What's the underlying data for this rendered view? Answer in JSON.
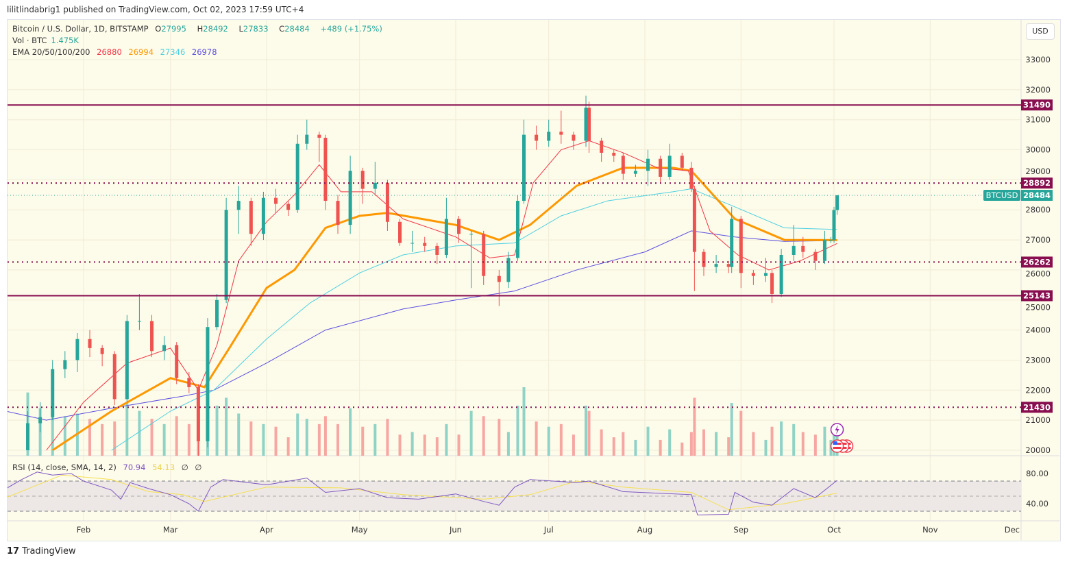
{
  "header": {
    "published": "lilitlindabrig1 published on TradingView.com, Oct 02, 2023 17:59 UTC+4"
  },
  "legend": {
    "symbol": "Bitcoin / U.S. Dollar, 1D, BITSTAMP",
    "o_label": "O",
    "o": "27995",
    "h_label": "H",
    "h": "28492",
    "l_label": "L",
    "l": "27833",
    "c_label": "C",
    "c": "28484",
    "change": "+489 (+1.75%)",
    "vol_label": "Vol · BTC",
    "vol": "1.475K",
    "ema_label": "EMA 20/50/100/200",
    "ema20": "26880",
    "ema50": "26994",
    "ema100": "27346",
    "ema200": "26978",
    "rsi_label": "RSI (14, close, SMA, 14, 2)",
    "rsi": "70.94",
    "rsi_sma": "54.13",
    "rsi_extra1": "∅",
    "rsi_extra2": "∅"
  },
  "currency": "USD",
  "footer": {
    "brand": "TradingView",
    "logo": "17"
  },
  "colors": {
    "up": "#26a69a",
    "down": "#ef5350",
    "ema20": "#f23645",
    "ema50": "#ff9800",
    "ema100": "#4dd0e1",
    "ema200": "#5b4fe0",
    "level": "#880e4f",
    "rsi": "#7e57c2",
    "rsi_sma": "#f5e050"
  },
  "chart_data": {
    "type": "candlestick",
    "year": 2023,
    "ylim": [
      20000,
      33000
    ],
    "yticks": [
      20000,
      21000,
      22000,
      23000,
      24000,
      25000,
      26000,
      27000,
      28000,
      29000,
      30000,
      31000,
      32000,
      33000
    ],
    "xticks": [
      {
        "label": "Feb",
        "date": "02-01"
      },
      {
        "label": "Mar",
        "date": "03-01"
      },
      {
        "label": "Apr",
        "date": "04-01"
      },
      {
        "label": "May",
        "date": "05-01"
      },
      {
        "label": "Jun",
        "date": "06-01"
      },
      {
        "label": "Jul",
        "date": "07-01"
      },
      {
        "label": "Aug",
        "date": "08-01"
      },
      {
        "label": "Sep",
        "date": "09-01"
      },
      {
        "label": "Oct",
        "date": "10-01"
      },
      {
        "label": "Nov",
        "date": "11-01"
      },
      {
        "label": "Dec",
        "date": "12-01"
      }
    ],
    "levels": [
      {
        "value": 31490,
        "label": "31490",
        "style": "solid"
      },
      {
        "value": 28892,
        "label": "28892",
        "style": "dotted"
      },
      {
        "value": 26262,
        "label": "26262",
        "style": "dotted"
      },
      {
        "value": 25143,
        "label": "25143",
        "style": "solid"
      },
      {
        "value": 21430,
        "label": "21430",
        "style": "dotted"
      }
    ],
    "last_price": {
      "symbol": "BTCUSD",
      "value": 28484,
      "label": "28484"
    },
    "candles": [
      [
        "01-14",
        20000,
        21300,
        20000,
        20900,
        2.4
      ],
      [
        "01-18",
        20900,
        21600,
        20600,
        21100,
        1.8
      ],
      [
        "01-22",
        21100,
        23000,
        21000,
        22700,
        2.1
      ],
      [
        "01-26",
        22700,
        23300,
        22400,
        23000,
        1.5
      ],
      [
        "01-30",
        23000,
        23900,
        22600,
        23700,
        1.6
      ],
      [
        "02-03",
        23700,
        24000,
        23100,
        23400,
        1.4
      ],
      [
        "02-07",
        23400,
        23500,
        22800,
        23200,
        1.2
      ],
      [
        "02-11",
        23200,
        23300,
        21500,
        21700,
        1.3
      ],
      [
        "02-15",
        21700,
        24500,
        21600,
        24300,
        2.0
      ],
      [
        "02-19",
        24300,
        25200,
        24000,
        24300,
        1.7
      ],
      [
        "02-23",
        24300,
        24500,
        23100,
        23300,
        1.4
      ],
      [
        "02-27",
        23300,
        23800,
        23000,
        23500,
        1.2
      ],
      [
        "03-03",
        23500,
        23600,
        22200,
        22400,
        1.5
      ],
      [
        "03-07",
        22400,
        22600,
        21900,
        22100,
        1.2
      ],
      [
        "03-10",
        22100,
        22200,
        19800,
        20300,
        2.3
      ],
      [
        "03-13",
        20300,
        24400,
        20100,
        24100,
        2.6
      ],
      [
        "03-16",
        24100,
        25200,
        24000,
        25000,
        1.9
      ],
      [
        "03-19",
        25000,
        28400,
        24900,
        28000,
        2.2
      ],
      [
        "03-23",
        28000,
        28800,
        27200,
        28300,
        1.6
      ],
      [
        "03-27",
        28300,
        28400,
        26800,
        27200,
        1.3
      ],
      [
        "03-31",
        27200,
        28600,
        27000,
        28400,
        1.2
      ],
      [
        "04-04",
        28400,
        28700,
        27900,
        28200,
        1.1
      ],
      [
        "04-08",
        28200,
        28300,
        27800,
        28000,
        0.7
      ],
      [
        "04-11",
        28000,
        30500,
        27900,
        30200,
        1.6
      ],
      [
        "04-14",
        30200,
        31000,
        30000,
        30500,
        1.4
      ],
      [
        "04-18",
        30500,
        30600,
        29600,
        30400,
        1.2
      ],
      [
        "04-20",
        30400,
        30500,
        28000,
        28300,
        1.5
      ],
      [
        "04-24",
        28300,
        28500,
        27200,
        27500,
        1.2
      ],
      [
        "04-28",
        27500,
        29800,
        27200,
        29300,
        1.8
      ],
      [
        "05-02",
        29300,
        29400,
        28200,
        28700,
        1.1
      ],
      [
        "05-06",
        28700,
        29600,
        28500,
        28900,
        1.2
      ],
      [
        "05-10",
        28900,
        29000,
        27300,
        27600,
        1.4
      ],
      [
        "05-14",
        27600,
        27700,
        26800,
        26900,
        0.8
      ],
      [
        "05-18",
        26900,
        27300,
        26600,
        26900,
        0.9
      ],
      [
        "05-22",
        26900,
        27100,
        26600,
        26800,
        0.8
      ],
      [
        "05-26",
        26800,
        26900,
        26200,
        26500,
        0.7
      ],
      [
        "05-29",
        26500,
        28400,
        26400,
        27700,
        1.2
      ],
      [
        "06-02",
        27700,
        27800,
        26900,
        27200,
        0.8
      ],
      [
        "06-06",
        27200,
        27300,
        25400,
        27200,
        1.7
      ],
      [
        "06-10",
        27200,
        27300,
        25500,
        25800,
        1.5
      ],
      [
        "06-15",
        25800,
        26000,
        24800,
        25600,
        1.4
      ],
      [
        "06-18",
        25600,
        26600,
        25400,
        26400,
        0.9
      ],
      [
        "06-21",
        26400,
        28500,
        26300,
        28300,
        1.9
      ],
      [
        "06-23",
        28300,
        31000,
        28200,
        30500,
        2.6
      ],
      [
        "06-27",
        30500,
        30800,
        30000,
        30300,
        1.3
      ],
      [
        "07-01",
        30300,
        31000,
        30100,
        30600,
        1.1
      ],
      [
        "07-05",
        30600,
        31300,
        30200,
        30500,
        1.2
      ],
      [
        "07-09",
        30500,
        30600,
        30000,
        30300,
        0.8
      ],
      [
        "07-13",
        30300,
        31800,
        30100,
        31400,
        1.9
      ],
      [
        "07-14",
        31400,
        31600,
        29900,
        30300,
        1.7
      ],
      [
        "07-18",
        30300,
        30400,
        29600,
        29900,
        1.0
      ],
      [
        "07-22",
        29900,
        30000,
        29600,
        29800,
        0.7
      ],
      [
        "07-25",
        29800,
        29900,
        29000,
        29200,
        0.9
      ],
      [
        "07-29",
        29200,
        29500,
        29100,
        29300,
        0.6
      ],
      [
        "08-02",
        29300,
        30000,
        28800,
        29700,
        1.1
      ],
      [
        "08-06",
        29700,
        29800,
        28900,
        29100,
        0.6
      ],
      [
        "08-09",
        29100,
        30200,
        29000,
        29800,
        1.0
      ],
      [
        "08-13",
        29800,
        29900,
        29300,
        29400,
        0.5
      ],
      [
        "08-16",
        29400,
        29600,
        28600,
        28700,
        0.9
      ],
      [
        "08-17",
        28700,
        28800,
        25300,
        26600,
        2.2
      ],
      [
        "08-20",
        26600,
        26700,
        25800,
        26100,
        1.0
      ],
      [
        "08-24",
        26100,
        26500,
        25900,
        26200,
        0.9
      ],
      [
        "08-28",
        26200,
        26300,
        25900,
        26100,
        0.7
      ],
      [
        "08-29",
        26100,
        28100,
        25900,
        27700,
        2.0
      ],
      [
        "09-01",
        27700,
        27800,
        25400,
        25900,
        1.7
      ],
      [
        "09-05",
        25900,
        26000,
        25500,
        25800,
        0.9
      ],
      [
        "09-09",
        25800,
        26400,
        25600,
        25900,
        0.6
      ],
      [
        "09-11",
        25900,
        26000,
        24900,
        25200,
        1.1
      ],
      [
        "09-14",
        25200,
        26700,
        25100,
        26500,
        1.3
      ],
      [
        "09-18",
        26500,
        27500,
        26300,
        26800,
        1.2
      ],
      [
        "09-21",
        26800,
        27100,
        26400,
        26600,
        0.9
      ],
      [
        "09-25",
        26600,
        26700,
        26000,
        26300,
        0.8
      ],
      [
        "09-28",
        26300,
        27300,
        26200,
        27000,
        1.1
      ],
      [
        "09-30",
        27000,
        27100,
        26900,
        27000,
        0.6
      ],
      [
        "10-01",
        27000,
        28100,
        26900,
        27995,
        1.2
      ],
      [
        "10-02",
        27995,
        28492,
        27833,
        28484,
        0.9
      ]
    ],
    "ema20": [
      [
        "01-20",
        20000
      ],
      [
        "02-01",
        21600
      ],
      [
        "02-15",
        22900
      ],
      [
        "03-01",
        23400
      ],
      [
        "03-10",
        22000
      ],
      [
        "03-16",
        23500
      ],
      [
        "03-23",
        26300
      ],
      [
        "04-01",
        27600
      ],
      [
        "04-10",
        28500
      ],
      [
        "04-18",
        29500
      ],
      [
        "04-25",
        28600
      ],
      [
        "05-05",
        28600
      ],
      [
        "05-15",
        27700
      ],
      [
        "06-01",
        27100
      ],
      [
        "06-12",
        26400
      ],
      [
        "06-20",
        26500
      ],
      [
        "06-26",
        28900
      ],
      [
        "07-05",
        30000
      ],
      [
        "07-14",
        30300
      ],
      [
        "07-25",
        29900
      ],
      [
        "08-05",
        29400
      ],
      [
        "08-15",
        29300
      ],
      [
        "08-22",
        27300
      ],
      [
        "08-31",
        26500
      ],
      [
        "09-10",
        26000
      ],
      [
        "09-20",
        26300
      ],
      [
        "10-02",
        26880
      ]
    ],
    "ema50": [
      [
        "01-22",
        20000
      ],
      [
        "02-10",
        21300
      ],
      [
        "03-01",
        22400
      ],
      [
        "03-12",
        22100
      ],
      [
        "03-20",
        23400
      ],
      [
        "04-01",
        25400
      ],
      [
        "04-10",
        26000
      ],
      [
        "04-20",
        27400
      ],
      [
        "05-01",
        27800
      ],
      [
        "05-10",
        27900
      ],
      [
        "06-01",
        27500
      ],
      [
        "06-15",
        27000
      ],
      [
        "06-25",
        27500
      ],
      [
        "07-10",
        28800
      ],
      [
        "07-25",
        29400
      ],
      [
        "08-10",
        29400
      ],
      [
        "08-16",
        29300
      ],
      [
        "08-30",
        27700
      ],
      [
        "09-15",
        27000
      ],
      [
        "10-02",
        26994
      ]
    ],
    "ema100": [
      [
        "02-10",
        20000
      ],
      [
        "03-01",
        21300
      ],
      [
        "03-15",
        22000
      ],
      [
        "04-01",
        23700
      ],
      [
        "04-15",
        24900
      ],
      [
        "05-01",
        25900
      ],
      [
        "05-15",
        26500
      ],
      [
        "06-01",
        26800
      ],
      [
        "06-20",
        26900
      ],
      [
        "07-05",
        27800
      ],
      [
        "07-20",
        28300
      ],
      [
        "08-10",
        28600
      ],
      [
        "08-16",
        28700
      ],
      [
        "08-30",
        28100
      ],
      [
        "09-15",
        27400
      ],
      [
        "10-02",
        27346
      ]
    ],
    "ema200": [
      [
        "01-07",
        21300
      ],
      [
        "01-20",
        21000
      ],
      [
        "02-10",
        21400
      ],
      [
        "03-05",
        21800
      ],
      [
        "03-15",
        22000
      ],
      [
        "04-01",
        22900
      ],
      [
        "04-20",
        24000
      ],
      [
        "05-15",
        24700
      ],
      [
        "06-01",
        25000
      ],
      [
        "06-20",
        25300
      ],
      [
        "07-10",
        26000
      ],
      [
        "08-01",
        26600
      ],
      [
        "08-16",
        27300
      ],
      [
        "08-30",
        27100
      ],
      [
        "09-15",
        26950
      ],
      [
        "10-02",
        26978
      ]
    ],
    "rsi": {
      "ylim": [
        20,
        100
      ],
      "yticks": [
        40,
        80
      ],
      "bands": [
        30,
        50,
        70
      ],
      "values": [
        [
          "01-07",
          60
        ],
        [
          "01-12",
          72
        ],
        [
          "01-17",
          82
        ],
        [
          "01-22",
          78
        ],
        [
          "01-28",
          80
        ],
        [
          "02-01",
          70
        ],
        [
          "02-10",
          58
        ],
        [
          "02-13",
          46
        ],
        [
          "02-16",
          68
        ],
        [
          "02-22",
          60
        ],
        [
          "03-01",
          52
        ],
        [
          "03-07",
          40
        ],
        [
          "03-10",
          30
        ],
        [
          "03-14",
          62
        ],
        [
          "03-18",
          72
        ],
        [
          "04-01",
          65
        ],
        [
          "04-14",
          74
        ],
        [
          "04-20",
          55
        ],
        [
          "05-01",
          60
        ],
        [
          "05-10",
          48
        ],
        [
          "05-20",
          46
        ],
        [
          "06-01",
          53
        ],
        [
          "06-10",
          43
        ],
        [
          "06-15",
          38
        ],
        [
          "06-20",
          62
        ],
        [
          "06-25",
          72
        ],
        [
          "07-10",
          68
        ],
        [
          "07-14",
          70
        ],
        [
          "07-25",
          56
        ],
        [
          "08-05",
          54
        ],
        [
          "08-16",
          52
        ],
        [
          "08-18",
          25
        ],
        [
          "08-28",
          26
        ],
        [
          "08-30",
          55
        ],
        [
          "09-05",
          42
        ],
        [
          "09-11",
          38
        ],
        [
          "09-18",
          60
        ],
        [
          "09-25",
          48
        ],
        [
          "10-02",
          70.94
        ]
      ],
      "sma": [
        [
          "01-07",
          48
        ],
        [
          "01-25",
          78
        ],
        [
          "02-10",
          72
        ],
        [
          "02-22",
          56
        ],
        [
          "03-05",
          52
        ],
        [
          "03-12",
          43
        ],
        [
          "04-01",
          62
        ],
        [
          "04-25",
          61
        ],
        [
          "05-15",
          52
        ],
        [
          "06-10",
          46
        ],
        [
          "06-25",
          52
        ],
        [
          "07-10",
          70
        ],
        [
          "07-25",
          62
        ],
        [
          "08-16",
          55
        ],
        [
          "08-28",
          32
        ],
        [
          "09-15",
          40
        ],
        [
          "10-02",
          54.13
        ]
      ]
    }
  }
}
